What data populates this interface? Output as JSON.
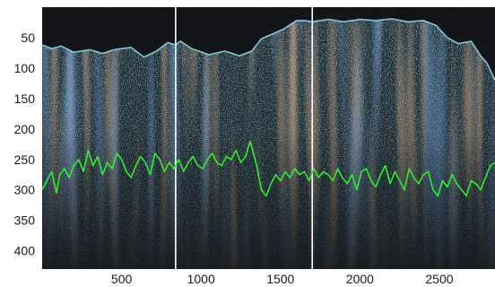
{
  "chart_data": {
    "type": "line",
    "background": "image (dark scan with cyan/blue/orange speckle texture)",
    "colors": {
      "trace": "#2ff52f",
      "markers": "#ffffff",
      "plot_bg": "#121418",
      "texture_cyan": "#8fd3e0",
      "texture_blue": "#2a62d8",
      "texture_orange": "#b8683a"
    },
    "xlim": [
      0,
      2850
    ],
    "ylim": [
      430,
      0
    ],
    "y_inverted": true,
    "x_ticks": [
      "500",
      "1000",
      "1500",
      "2000",
      "2500"
    ],
    "x_tick_values": [
      500,
      1000,
      1500,
      2000,
      2500
    ],
    "y_ticks": [
      "50",
      "100",
      "150",
      "200",
      "250",
      "300",
      "350",
      "400"
    ],
    "y_tick_values": [
      50,
      100,
      150,
      200,
      250,
      300,
      350,
      400
    ],
    "vertical_markers": [
      840,
      1700
    ],
    "surface_profile": {
      "x": [
        0,
        60,
        120,
        200,
        300,
        380,
        450,
        560,
        640,
        720,
        790,
        840,
        870,
        940,
        1050,
        1150,
        1240,
        1320,
        1380,
        1450,
        1520,
        1600,
        1650,
        1700,
        1800,
        1900,
        2000,
        2100,
        2200,
        2300,
        2400,
        2480,
        2550,
        2620,
        2700,
        2760,
        2800,
        2850
      ],
      "y": [
        62,
        68,
        64,
        74,
        70,
        76,
        70,
        66,
        82,
        72,
        58,
        62,
        56,
        68,
        78,
        72,
        80,
        72,
        52,
        44,
        36,
        22,
        22,
        24,
        20,
        24,
        20,
        22,
        19,
        24,
        22,
        30,
        50,
        60,
        56,
        80,
        92,
        120
      ]
    },
    "series": [
      {
        "x": [
          0,
          30,
          60,
          90,
          110,
          140,
          170,
          200,
          230,
          260,
          290,
          320,
          350,
          380,
          410,
          440,
          470,
          500,
          530,
          560,
          590,
          620,
          650,
          680,
          710,
          740,
          770,
          800,
          830,
          860,
          890,
          920,
          950,
          980,
          1010,
          1040,
          1070,
          1100,
          1130,
          1160,
          1190,
          1220,
          1250,
          1280,
          1310,
          1330,
          1350,
          1380,
          1410,
          1440,
          1470,
          1500,
          1530,
          1560,
          1590,
          1620,
          1650,
          1680,
          1710,
          1740,
          1770,
          1800,
          1830,
          1860,
          1890,
          1920,
          1950,
          1980,
          2010,
          2040,
          2070,
          2100,
          2130,
          2160,
          2190,
          2220,
          2250,
          2280,
          2310,
          2340,
          2370,
          2400,
          2430,
          2460,
          2490,
          2520,
          2550,
          2580,
          2610,
          2640,
          2670,
          2700,
          2730,
          2760,
          2790,
          2820,
          2850
        ],
        "y": [
          300,
          285,
          270,
          305,
          275,
          265,
          280,
          260,
          250,
          270,
          235,
          260,
          245,
          275,
          255,
          265,
          240,
          250,
          270,
          280,
          260,
          245,
          255,
          275,
          240,
          250,
          270,
          255,
          265,
          250,
          270,
          255,
          245,
          260,
          265,
          250,
          240,
          255,
          260,
          245,
          250,
          235,
          255,
          245,
          220,
          240,
          260,
          300,
          310,
          290,
          275,
          285,
          270,
          280,
          265,
          275,
          270,
          285,
          265,
          280,
          270,
          275,
          285,
          265,
          280,
          290,
          275,
          300,
          270,
          265,
          285,
          295,
          275,
          260,
          290,
          270,
          285,
          300,
          265,
          280,
          290,
          275,
          270,
          300,
          310,
          285,
          295,
          275,
          290,
          300,
          310,
          285,
          290,
          300,
          280,
          260,
          255
        ]
      }
    ]
  }
}
